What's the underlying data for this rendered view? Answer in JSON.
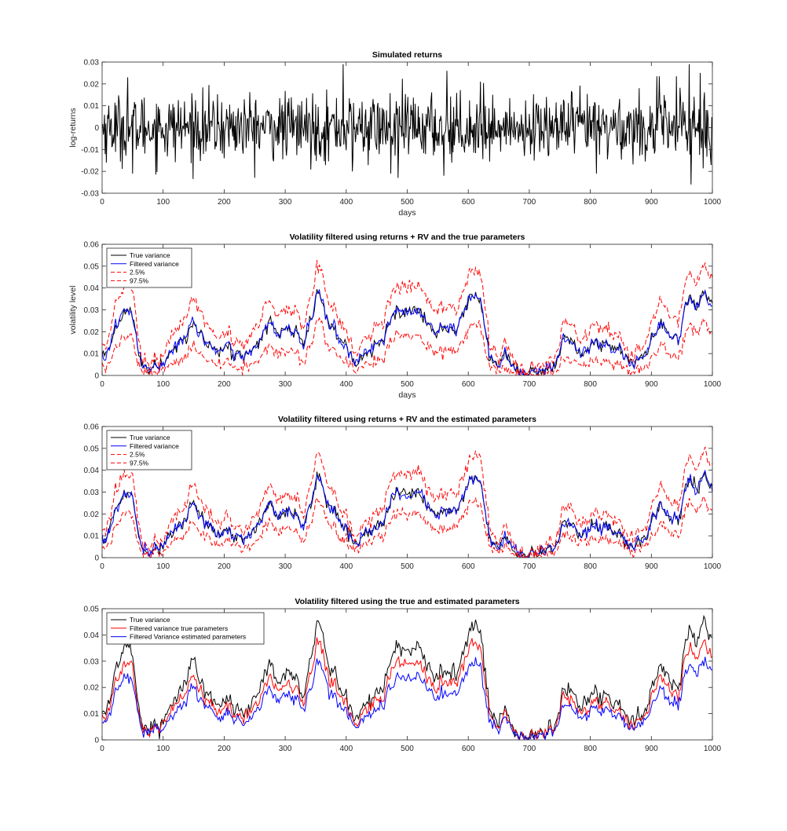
{
  "chart_data": [
    {
      "type": "line",
      "title": "Simulated returns",
      "xlabel": "days",
      "ylabel": "log-returns",
      "xlim": [
        0,
        1000
      ],
      "ylim": [
        -0.03,
        0.03
      ],
      "x_ticks": [
        "0",
        "100",
        "200",
        "300",
        "400",
        "500",
        "600",
        "700",
        "800",
        "900",
        "1000"
      ],
      "y_ticks": [
        "-0.03",
        "-0.02",
        "-0.01",
        "0",
        "0.01",
        "0.02",
        "0.03"
      ],
      "grid": false,
      "legend": null,
      "series": [
        {
          "color": "#000000",
          "dash": "solid",
          "generator": "returns",
          "n": 1000,
          "anchors": [
            [
              0,
              0.0
            ],
            [
              42,
              0.023
            ],
            [
              50,
              -0.021
            ],
            [
              395,
              0.029
            ],
            [
              410,
              -0.02
            ],
            [
              473,
              -0.021
            ],
            [
              485,
              -0.023
            ],
            [
              560,
              -0.022
            ],
            [
              565,
              0.026
            ],
            [
              620,
              0.021
            ],
            [
              810,
              -0.021
            ],
            [
              962,
              0.029
            ],
            [
              965,
              -0.026
            ],
            [
              980,
              0.025
            ],
            [
              1000,
              0.0
            ]
          ]
        }
      ]
    },
    {
      "type": "line",
      "title": "Volatility filtered using returns + RV and the true parameters",
      "xlabel": "days",
      "ylabel": "volatility level",
      "xlim": [
        0,
        1000
      ],
      "ylim": [
        0,
        0.06
      ],
      "x_ticks": [
        "0",
        "100",
        "200",
        "300",
        "400",
        "500",
        "600",
        "700",
        "800",
        "900",
        "1000"
      ],
      "y_ticks": [
        "0",
        "0.01",
        "0.02",
        "0.03",
        "0.04",
        "0.05",
        "0.06"
      ],
      "grid": false,
      "legend": {
        "position": "top-left",
        "entries": [
          "True variance",
          "Filtered variance",
          "2.5%",
          "97.5%"
        ]
      },
      "base_profile": [
        [
          0,
          0.009
        ],
        [
          10,
          0.012
        ],
        [
          20,
          0.02
        ],
        [
          30,
          0.027
        ],
        [
          42,
          0.032
        ],
        [
          50,
          0.028
        ],
        [
          58,
          0.012
        ],
        [
          65,
          0.004
        ],
        [
          80,
          0.001
        ],
        [
          95,
          0.004
        ],
        [
          105,
          0.009
        ],
        [
          120,
          0.015
        ],
        [
          135,
          0.016
        ],
        [
          150,
          0.024
        ],
        [
          160,
          0.018
        ],
        [
          175,
          0.014
        ],
        [
          190,
          0.01
        ],
        [
          210,
          0.012
        ],
        [
          230,
          0.009
        ],
        [
          250,
          0.012
        ],
        [
          265,
          0.02
        ],
        [
          275,
          0.025
        ],
        [
          290,
          0.018
        ],
        [
          305,
          0.02
        ],
        [
          320,
          0.02
        ],
        [
          330,
          0.015
        ],
        [
          342,
          0.025
        ],
        [
          352,
          0.038
        ],
        [
          360,
          0.033
        ],
        [
          375,
          0.022
        ],
        [
          390,
          0.016
        ],
        [
          405,
          0.012
        ],
        [
          415,
          0.006
        ],
        [
          430,
          0.012
        ],
        [
          445,
          0.013
        ],
        [
          460,
          0.016
        ],
        [
          470,
          0.024
        ],
        [
          480,
          0.03
        ],
        [
          495,
          0.029
        ],
        [
          510,
          0.03
        ],
        [
          520,
          0.028
        ],
        [
          545,
          0.022
        ],
        [
          560,
          0.021
        ],
        [
          580,
          0.023
        ],
        [
          590,
          0.028
        ],
        [
          600,
          0.034
        ],
        [
          610,
          0.037
        ],
        [
          620,
          0.036
        ],
        [
          630,
          0.014
        ],
        [
          640,
          0.007
        ],
        [
          650,
          0.006
        ],
        [
          660,
          0.012
        ],
        [
          670,
          0.005
        ],
        [
          680,
          0.002
        ],
        [
          695,
          0.001
        ],
        [
          710,
          0.003
        ],
        [
          725,
          0.003
        ],
        [
          735,
          0.006
        ],
        [
          745,
          0.005
        ],
        [
          755,
          0.016
        ],
        [
          765,
          0.019
        ],
        [
          780,
          0.011
        ],
        [
          795,
          0.012
        ],
        [
          810,
          0.017
        ],
        [
          820,
          0.013
        ],
        [
          835,
          0.01
        ],
        [
          850,
          0.012
        ],
        [
          865,
          0.005
        ],
        [
          880,
          0.005
        ],
        [
          895,
          0.01
        ],
        [
          905,
          0.02
        ],
        [
          915,
          0.025
        ],
        [
          930,
          0.018
        ],
        [
          945,
          0.015
        ],
        [
          955,
          0.032
        ],
        [
          965,
          0.036
        ],
        [
          975,
          0.03
        ],
        [
          985,
          0.038
        ],
        [
          995,
          0.035
        ],
        [
          1000,
          0.033
        ]
      ],
      "series": [
        {
          "name": "True variance",
          "color": "#000000",
          "dash": "solid",
          "generator": "vol",
          "offset": 0.0,
          "noise": 0.0012
        },
        {
          "name": "Filtered variance",
          "color": "#0000ff",
          "dash": "solid",
          "generator": "vol",
          "offset": 0.0,
          "noise": 0.0011
        },
        {
          "name": "2.5%",
          "color": "#ff0000",
          "dash": "6,3",
          "generator": "vol",
          "offset": -0.006,
          "noise": 0.0012
        },
        {
          "name": "97.5%",
          "color": "#ff0000",
          "dash": "6,3",
          "generator": "vol",
          "offset": 0.006,
          "noise": 0.0012
        }
      ]
    },
    {
      "type": "line",
      "title": "Volatility filtered using returns + RV and the estimated parameters",
      "xlabel": "",
      "ylabel": "",
      "xlim": [
        0,
        1000
      ],
      "ylim": [
        0,
        0.06
      ],
      "x_ticks": [
        "0",
        "100",
        "200",
        "300",
        "400",
        "500",
        "600",
        "700",
        "800",
        "900",
        "1000"
      ],
      "y_ticks": [
        "0",
        "0.01",
        "0.02",
        "0.03",
        "0.04",
        "0.05",
        "0.06"
      ],
      "grid": false,
      "legend": {
        "position": "top-left",
        "entries": [
          "True variance",
          "Filtered variance",
          "2.5%",
          "97.5%"
        ]
      },
      "base_profile": [
        [
          0,
          0.009
        ],
        [
          10,
          0.012
        ],
        [
          20,
          0.02
        ],
        [
          30,
          0.027
        ],
        [
          42,
          0.032
        ],
        [
          50,
          0.028
        ],
        [
          58,
          0.012
        ],
        [
          65,
          0.004
        ],
        [
          80,
          0.001
        ],
        [
          95,
          0.004
        ],
        [
          105,
          0.009
        ],
        [
          120,
          0.015
        ],
        [
          135,
          0.016
        ],
        [
          150,
          0.024
        ],
        [
          160,
          0.018
        ],
        [
          175,
          0.014
        ],
        [
          190,
          0.01
        ],
        [
          210,
          0.012
        ],
        [
          230,
          0.009
        ],
        [
          250,
          0.012
        ],
        [
          265,
          0.02
        ],
        [
          275,
          0.025
        ],
        [
          290,
          0.018
        ],
        [
          305,
          0.02
        ],
        [
          320,
          0.02
        ],
        [
          330,
          0.015
        ],
        [
          342,
          0.025
        ],
        [
          352,
          0.038
        ],
        [
          360,
          0.033
        ],
        [
          375,
          0.022
        ],
        [
          390,
          0.016
        ],
        [
          405,
          0.012
        ],
        [
          415,
          0.006
        ],
        [
          430,
          0.012
        ],
        [
          445,
          0.013
        ],
        [
          460,
          0.016
        ],
        [
          470,
          0.024
        ],
        [
          480,
          0.03
        ],
        [
          495,
          0.029
        ],
        [
          510,
          0.03
        ],
        [
          520,
          0.028
        ],
        [
          545,
          0.022
        ],
        [
          560,
          0.021
        ],
        [
          580,
          0.023
        ],
        [
          590,
          0.028
        ],
        [
          600,
          0.034
        ],
        [
          610,
          0.037
        ],
        [
          620,
          0.036
        ],
        [
          630,
          0.014
        ],
        [
          640,
          0.007
        ],
        [
          650,
          0.006
        ],
        [
          660,
          0.012
        ],
        [
          670,
          0.005
        ],
        [
          680,
          0.002
        ],
        [
          695,
          0.001
        ],
        [
          710,
          0.003
        ],
        [
          725,
          0.003
        ],
        [
          735,
          0.006
        ],
        [
          745,
          0.005
        ],
        [
          755,
          0.016
        ],
        [
          765,
          0.019
        ],
        [
          780,
          0.011
        ],
        [
          795,
          0.012
        ],
        [
          810,
          0.017
        ],
        [
          820,
          0.013
        ],
        [
          835,
          0.01
        ],
        [
          850,
          0.012
        ],
        [
          865,
          0.005
        ],
        [
          880,
          0.005
        ],
        [
          895,
          0.01
        ],
        [
          905,
          0.02
        ],
        [
          915,
          0.025
        ],
        [
          930,
          0.018
        ],
        [
          945,
          0.015
        ],
        [
          955,
          0.032
        ],
        [
          965,
          0.036
        ],
        [
          975,
          0.03
        ],
        [
          985,
          0.038
        ],
        [
          995,
          0.035
        ],
        [
          1000,
          0.033
        ]
      ],
      "series": [
        {
          "name": "True variance",
          "color": "#000000",
          "dash": "solid",
          "generator": "vol",
          "offset": 0.0,
          "noise": 0.0012
        },
        {
          "name": "Filtered variance",
          "color": "#0000ff",
          "dash": "solid",
          "generator": "vol",
          "offset": 0.0,
          "noise": 0.0011
        },
        {
          "name": "2.5%",
          "color": "#ff0000",
          "dash": "6,3",
          "generator": "vol",
          "offset": -0.004,
          "noise": 0.0011
        },
        {
          "name": "97.5%",
          "color": "#ff0000",
          "dash": "6,3",
          "generator": "vol",
          "offset": 0.004,
          "noise": 0.0011
        }
      ]
    },
    {
      "type": "line",
      "title": "Volatility filtered using the true and estimated parameters",
      "xlabel": "",
      "ylabel": "",
      "xlim": [
        0,
        1000
      ],
      "ylim": [
        0,
        0.05
      ],
      "x_ticks": [
        "0",
        "100",
        "200",
        "300",
        "400",
        "500",
        "600",
        "700",
        "800",
        "900",
        "1000"
      ],
      "y_ticks": [
        "0",
        "0.01",
        "0.02",
        "0.03",
        "0.04",
        "0.05"
      ],
      "grid": false,
      "legend": {
        "position": "top-left",
        "entries": [
          "True variance",
          "Filtered variance true parameters",
          "Filtered Variance estimated parameters"
        ]
      },
      "base_profile": [
        [
          0,
          0.009
        ],
        [
          10,
          0.012
        ],
        [
          20,
          0.02
        ],
        [
          30,
          0.027
        ],
        [
          42,
          0.032
        ],
        [
          50,
          0.028
        ],
        [
          58,
          0.012
        ],
        [
          65,
          0.004
        ],
        [
          80,
          0.001
        ],
        [
          95,
          0.004
        ],
        [
          105,
          0.009
        ],
        [
          120,
          0.015
        ],
        [
          135,
          0.016
        ],
        [
          150,
          0.024
        ],
        [
          160,
          0.018
        ],
        [
          175,
          0.014
        ],
        [
          190,
          0.01
        ],
        [
          210,
          0.012
        ],
        [
          230,
          0.009
        ],
        [
          250,
          0.012
        ],
        [
          265,
          0.02
        ],
        [
          275,
          0.025
        ],
        [
          290,
          0.018
        ],
        [
          305,
          0.02
        ],
        [
          320,
          0.02
        ],
        [
          330,
          0.015
        ],
        [
          342,
          0.025
        ],
        [
          352,
          0.038
        ],
        [
          360,
          0.033
        ],
        [
          375,
          0.022
        ],
        [
          390,
          0.016
        ],
        [
          405,
          0.012
        ],
        [
          415,
          0.006
        ],
        [
          430,
          0.012
        ],
        [
          445,
          0.013
        ],
        [
          460,
          0.016
        ],
        [
          470,
          0.024
        ],
        [
          480,
          0.03
        ],
        [
          495,
          0.029
        ],
        [
          510,
          0.03
        ],
        [
          520,
          0.028
        ],
        [
          545,
          0.022
        ],
        [
          560,
          0.021
        ],
        [
          580,
          0.023
        ],
        [
          590,
          0.028
        ],
        [
          600,
          0.034
        ],
        [
          610,
          0.037
        ],
        [
          620,
          0.036
        ],
        [
          630,
          0.014
        ],
        [
          640,
          0.007
        ],
        [
          650,
          0.006
        ],
        [
          660,
          0.012
        ],
        [
          670,
          0.005
        ],
        [
          680,
          0.002
        ],
        [
          695,
          0.001
        ],
        [
          710,
          0.003
        ],
        [
          725,
          0.003
        ],
        [
          735,
          0.006
        ],
        [
          745,
          0.005
        ],
        [
          755,
          0.016
        ],
        [
          765,
          0.019
        ],
        [
          780,
          0.011
        ],
        [
          795,
          0.012
        ],
        [
          810,
          0.017
        ],
        [
          820,
          0.013
        ],
        [
          835,
          0.01
        ],
        [
          850,
          0.012
        ],
        [
          865,
          0.005
        ],
        [
          880,
          0.005
        ],
        [
          895,
          0.01
        ],
        [
          905,
          0.02
        ],
        [
          915,
          0.025
        ],
        [
          930,
          0.018
        ],
        [
          945,
          0.015
        ],
        [
          955,
          0.032
        ],
        [
          965,
          0.036
        ],
        [
          975,
          0.03
        ],
        [
          985,
          0.038
        ],
        [
          995,
          0.035
        ],
        [
          1000,
          0.033
        ]
      ],
      "series": [
        {
          "name": "True variance",
          "color": "#000000",
          "dash": "solid",
          "generator": "vol",
          "offset": 0.0005,
          "noise": 0.0012
        },
        {
          "name": "Filtered variance true parameters",
          "color": "#ff0000",
          "dash": "solid",
          "generator": "vol",
          "offset": 0.0,
          "noise": 0.0009
        },
        {
          "name": "Filtered Variance estimated parameters",
          "color": "#0000ff",
          "dash": "solid",
          "generator": "vol",
          "offset": -0.0003,
          "noise": 0.0009
        }
      ]
    }
  ]
}
